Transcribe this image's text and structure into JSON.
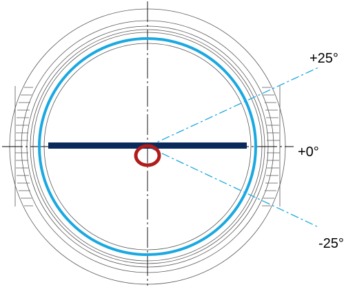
{
  "labels": {
    "plus25": "+25°",
    "zero": "+0°",
    "minus25": "-25°"
  },
  "colors": {
    "outline": "#555555",
    "axis": "#000000",
    "ring": "#1ba8e0",
    "beam": "#0b2a5c",
    "pivot": "#b01c1c",
    "ray": "#1ba8e0"
  },
  "angles_deg": [
    25,
    0,
    -25
  ]
}
